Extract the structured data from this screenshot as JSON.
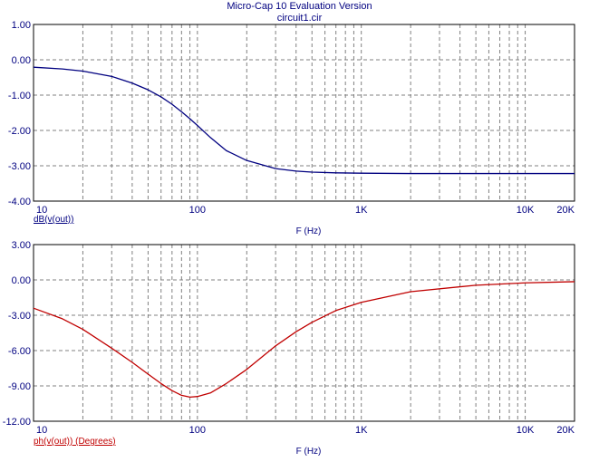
{
  "header": {
    "title": "Micro-Cap 10 Evaluation Version",
    "subtitle": "circuit1.cir"
  },
  "colors": {
    "text": "#000080",
    "grid": "#808080",
    "trace_magnitude": "#000080",
    "trace_phase": "#c00000",
    "frame": "#000000"
  },
  "chart_data": [
    {
      "type": "line",
      "x_scale": "log",
      "xlim": [
        10,
        20000
      ],
      "ylim": [
        -4,
        1
      ],
      "yticks": [
        "1.00",
        "0.00",
        "-1.00",
        "-2.00",
        "-3.00",
        "-4.00"
      ],
      "xticks": [
        "10",
        "100",
        "1K",
        "10K",
        "20K"
      ],
      "xlabel": "F (Hz)",
      "ylabel": "dB(v(out))",
      "grid": true,
      "series": [
        {
          "name": "dB(v(out))",
          "x": [
            10,
            15,
            20,
            30,
            40,
            50,
            60,
            70,
            80,
            90,
            100,
            120,
            150,
            200,
            300,
            400,
            500,
            700,
            1000,
            2000,
            5000,
            10000,
            20000
          ],
          "y": [
            -0.21,
            -0.26,
            -0.32,
            -0.47,
            -0.66,
            -0.85,
            -1.05,
            -1.26,
            -1.47,
            -1.67,
            -1.86,
            -2.2,
            -2.57,
            -2.85,
            -3.08,
            -3.15,
            -3.18,
            -3.2,
            -3.21,
            -3.22,
            -3.22,
            -3.22,
            -3.22
          ]
        }
      ]
    },
    {
      "type": "line",
      "x_scale": "log",
      "xlim": [
        10,
        20000
      ],
      "ylim": [
        -12,
        3
      ],
      "yticks": [
        "3.00",
        "0.00",
        "-3.00",
        "-6.00",
        "-9.00",
        "-12.00"
      ],
      "xticks": [
        "10",
        "100",
        "1K",
        "10K",
        "20K"
      ],
      "xlabel": "F (Hz)",
      "ylabel": "ph(v(out)) (Degrees)",
      "grid": true,
      "series": [
        {
          "name": "ph(v(out)) (Degrees)",
          "x": [
            10,
            15,
            20,
            30,
            40,
            50,
            60,
            70,
            80,
            90,
            100,
            120,
            150,
            200,
            300,
            400,
            500,
            700,
            1000,
            2000,
            5000,
            10000,
            20000
          ],
          "y": [
            -2.4,
            -3.3,
            -4.2,
            -5.8,
            -7.0,
            -8.0,
            -8.8,
            -9.4,
            -9.8,
            -9.95,
            -9.9,
            -9.6,
            -8.8,
            -7.6,
            -5.6,
            -4.4,
            -3.6,
            -2.6,
            -1.9,
            -1.0,
            -0.45,
            -0.25,
            -0.15
          ]
        }
      ]
    }
  ]
}
